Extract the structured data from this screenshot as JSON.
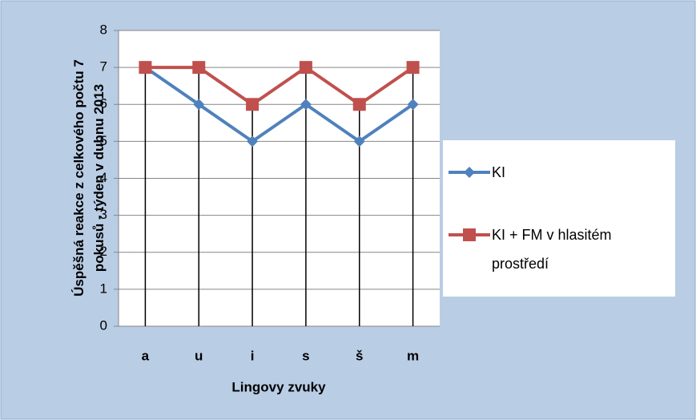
{
  "chart_data": {
    "type": "line",
    "ylabel": "Úspěšná reakce z celkového počtu 7 pokusů - týden v dubnu 2013",
    "xlabel": "Lingovy zvuky",
    "categories": [
      "a",
      "u",
      "i",
      "s",
      "š",
      "m"
    ],
    "series": [
      {
        "name": "KI",
        "color": "#4f81bd",
        "values": [
          7,
          6,
          5,
          6,
          5,
          6
        ]
      },
      {
        "name": "KI + FM v hlasitém prostředí",
        "color": "#c0504d",
        "values": [
          7,
          7,
          6,
          7,
          6,
          7
        ]
      }
    ],
    "ylim": [
      0,
      8
    ],
    "yticks": [
      0,
      1,
      2,
      3,
      4,
      5,
      6,
      7,
      8
    ],
    "grid": true,
    "legend": "right"
  }
}
